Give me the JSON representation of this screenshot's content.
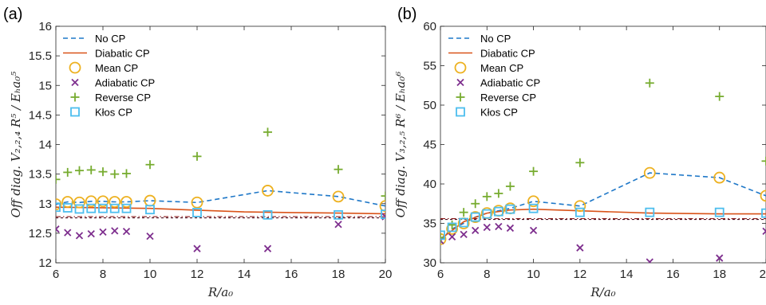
{
  "chart_data": [
    {
      "type": "scatter",
      "panel_label": "(a)",
      "xlabel": "R/a₀",
      "ylabel": "Off diag. V₂,₂,₄ R⁵ / Eₕa₀⁵",
      "xlim": [
        6,
        20
      ],
      "ylim": [
        12,
        16
      ],
      "xticks": [
        "6",
        "8",
        "10",
        "12",
        "14",
        "16",
        "18",
        "20"
      ],
      "yticks": [
        "12",
        "12.5",
        "13",
        "13.5",
        "14",
        "14.5",
        "15",
        "15.5",
        "16"
      ],
      "legend_position": "top-left",
      "reference_lines": [
        12.78,
        12.76
      ],
      "series": [
        {
          "name": "No CP",
          "style": "dashed",
          "color": "#1f78c8",
          "x": [
            6,
            6.5,
            7,
            7.5,
            8,
            8.5,
            9,
            10,
            12,
            15,
            18,
            20
          ],
          "y": [
            12.99,
            13.03,
            13.02,
            13.04,
            13.04,
            13.03,
            13.03,
            13.05,
            13.02,
            13.22,
            13.12,
            12.96
          ]
        },
        {
          "name": "Diabatic CP",
          "style": "solid",
          "color": "#d95319",
          "x": [
            6,
            8,
            10,
            12,
            14,
            16,
            18,
            20
          ],
          "y": [
            12.94,
            12.93,
            12.92,
            12.89,
            12.86,
            12.85,
            12.84,
            12.83
          ]
        },
        {
          "name": "Mean CP",
          "style": "circle",
          "color": "#edb120",
          "x": [
            6,
            6.5,
            7,
            7.5,
            8,
            8.5,
            9,
            10,
            12,
            15,
            18,
            20
          ],
          "y": [
            12.99,
            13.03,
            13.02,
            13.04,
            13.04,
            13.03,
            13.03,
            13.05,
            13.02,
            13.22,
            13.12,
            12.96
          ]
        },
        {
          "name": "Adiabatic CP",
          "style": "x",
          "color": "#7e2f8e",
          "x": [
            6,
            6.5,
            7,
            7.5,
            8,
            8.5,
            9,
            10,
            12,
            15,
            18,
            20
          ],
          "y": [
            12.57,
            12.51,
            12.46,
            12.49,
            12.52,
            12.54,
            12.53,
            12.45,
            12.24,
            12.24,
            12.65,
            12.78
          ]
        },
        {
          "name": "Reverse CP",
          "style": "plus",
          "color": "#77ac30",
          "x": [
            6,
            6.5,
            7,
            7.5,
            8,
            8.5,
            9,
            10,
            12,
            15,
            18,
            20
          ],
          "y": [
            13.41,
            13.53,
            13.56,
            13.57,
            13.54,
            13.5,
            13.51,
            13.66,
            13.8,
            14.21,
            13.58,
            13.13
          ]
        },
        {
          "name": "Kłos CP",
          "style": "square",
          "color": "#4dbeee",
          "x": [
            6,
            6.5,
            7,
            7.5,
            8,
            8.5,
            9,
            10,
            12,
            15,
            18,
            20
          ],
          "y": [
            12.94,
            12.93,
            12.91,
            12.92,
            12.92,
            12.92,
            12.92,
            12.9,
            12.85,
            12.81,
            12.81,
            12.82
          ]
        }
      ]
    },
    {
      "type": "scatter",
      "panel_label": "(b)",
      "xlabel": "R/a₀",
      "ylabel": "Off diag. V₃,₂,₅ R⁶ / Eₕa₀⁶",
      "xlim": [
        6,
        20
      ],
      "ylim": [
        30,
        60
      ],
      "xticks": [
        "6",
        "8",
        "10",
        "12",
        "14",
        "16",
        "18",
        "20"
      ],
      "yticks": [
        "30",
        "35",
        "40",
        "45",
        "50",
        "55",
        "60"
      ],
      "legend_position": "top-left",
      "reference_lines": [
        35.6,
        35.5
      ],
      "series": [
        {
          "name": "No CP",
          "style": "dashed",
          "color": "#1f78c8",
          "x": [
            6,
            6.5,
            7,
            7.5,
            8,
            8.5,
            9,
            10,
            12,
            15,
            18,
            20
          ],
          "y": [
            33.0,
            34.3,
            35.0,
            35.8,
            36.3,
            36.6,
            36.9,
            37.8,
            37.2,
            41.4,
            40.8,
            38.5
          ]
        },
        {
          "name": "Diabatic CP",
          "style": "solid",
          "color": "#d95319",
          "x": [
            6,
            7,
            8,
            9,
            10,
            12,
            15,
            18,
            20
          ],
          "y": [
            33.0,
            35.2,
            36.3,
            36.7,
            36.8,
            36.6,
            36.3,
            36.2,
            36.2
          ]
        },
        {
          "name": "Mean CP",
          "style": "circle",
          "color": "#edb120",
          "x": [
            6,
            6.5,
            7,
            7.5,
            8,
            8.5,
            9,
            10,
            12,
            15,
            18,
            20
          ],
          "y": [
            33.0,
            34.3,
            35.0,
            35.8,
            36.3,
            36.6,
            36.9,
            37.8,
            37.2,
            41.4,
            40.8,
            38.5
          ]
        },
        {
          "name": "Adiabatic CP",
          "style": "x",
          "color": "#7e2f8e",
          "x": [
            6,
            6.5,
            7,
            7.5,
            8,
            8.5,
            9,
            10,
            12,
            15,
            18,
            20
          ],
          "y": [
            32.8,
            33.3,
            33.6,
            34.1,
            34.5,
            34.6,
            34.4,
            34.1,
            31.9,
            30.1,
            30.6,
            34.0
          ]
        },
        {
          "name": "Reverse CP",
          "style": "plus",
          "color": "#77ac30",
          "x": [
            6,
            6.5,
            7,
            7.5,
            8,
            8.5,
            9,
            10,
            12,
            15,
            18,
            20
          ],
          "y": [
            33.2,
            34.8,
            36.4,
            37.5,
            38.4,
            38.8,
            39.7,
            41.6,
            42.7,
            52.8,
            51.1,
            42.9
          ]
        },
        {
          "name": "Kłos CP",
          "style": "square",
          "color": "#4dbeee",
          "x": [
            6,
            6.5,
            7,
            7.5,
            8,
            8.5,
            9,
            10,
            12,
            15,
            18,
            20
          ],
          "y": [
            33.5,
            34.5,
            35.1,
            35.8,
            36.2,
            36.5,
            36.8,
            36.9,
            36.4,
            36.4,
            36.4,
            36.3
          ]
        }
      ]
    }
  ]
}
